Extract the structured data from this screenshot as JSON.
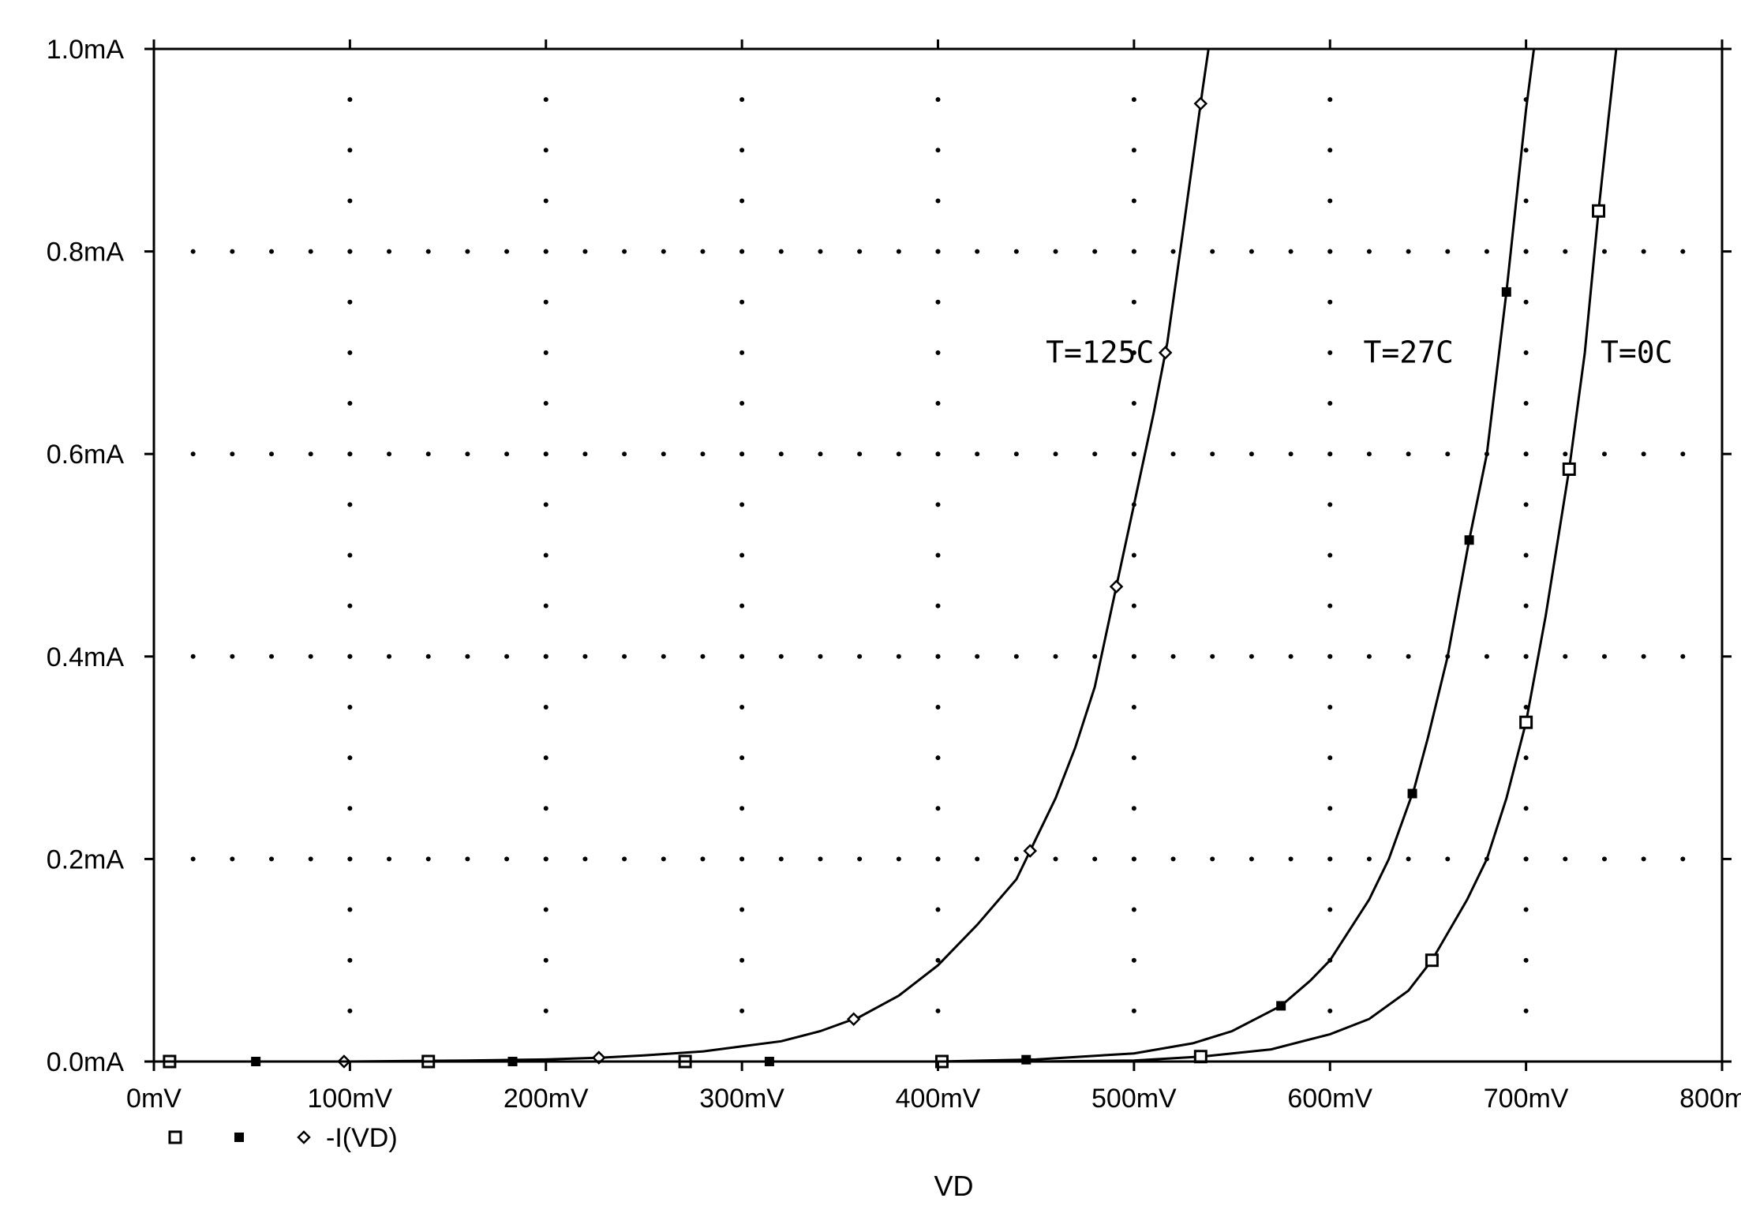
{
  "chart_data": {
    "type": "line",
    "title": "",
    "xlabel": "VD",
    "ylabel": "",
    "xlim": [
      0,
      800
    ],
    "ylim": [
      0,
      1.0
    ],
    "x_unit": "mV",
    "y_unit": "mA",
    "grid": true,
    "legend_position": "bottom-left",
    "x_ticks": [
      0,
      100,
      200,
      300,
      400,
      500,
      600,
      700,
      800
    ],
    "x_tick_labels": [
      "0mV",
      "100mV",
      "200mV",
      "300mV",
      "400mV",
      "500mV",
      "600mV",
      "700mV",
      "800mV"
    ],
    "y_ticks": [
      0,
      0.2,
      0.4,
      0.6,
      0.8,
      1.0
    ],
    "y_tick_labels": [
      "0.0mA",
      "0.2mA",
      "0.4mA",
      "0.6mA",
      "0.8mA",
      "1.0mA"
    ],
    "legend": {
      "entries": [
        {
          "marker": "open-square",
          "label": ""
        },
        {
          "marker": "filled-square",
          "label": ""
        },
        {
          "marker": "open-diamond",
          "label": "-I(VD)"
        }
      ]
    },
    "series": [
      {
        "name": "T=125C",
        "marker": "open-diamond",
        "points": [
          [
            0,
            0
          ],
          [
            100,
            0
          ],
          [
            160,
            0.001
          ],
          [
            200,
            0.002
          ],
          [
            230,
            0.004
          ],
          [
            250,
            0.006
          ],
          [
            280,
            0.01
          ],
          [
            300,
            0.015
          ],
          [
            320,
            0.02
          ],
          [
            340,
            0.03
          ],
          [
            360,
            0.044
          ],
          [
            380,
            0.065
          ],
          [
            400,
            0.095
          ],
          [
            420,
            0.135
          ],
          [
            440,
            0.18
          ],
          [
            450,
            0.22
          ],
          [
            460,
            0.26
          ],
          [
            470,
            0.31
          ],
          [
            480,
            0.37
          ],
          [
            490,
            0.46
          ],
          [
            500,
            0.55
          ],
          [
            510,
            0.64
          ],
          [
            517,
            0.71
          ],
          [
            525,
            0.82
          ],
          [
            530,
            0.89
          ],
          [
            535,
            0.96
          ],
          [
            538,
            1.0
          ]
        ],
        "marker_x": [
          97,
          227,
          357,
          447,
          491,
          516,
          534
        ]
      },
      {
        "name": "T=27C",
        "marker": "filled-square",
        "points": [
          [
            0,
            0
          ],
          [
            400,
            0
          ],
          [
            450,
            0.002
          ],
          [
            500,
            0.008
          ],
          [
            530,
            0.018
          ],
          [
            550,
            0.03
          ],
          [
            575,
            0.055
          ],
          [
            590,
            0.08
          ],
          [
            600,
            0.1
          ],
          [
            620,
            0.16
          ],
          [
            630,
            0.2
          ],
          [
            643,
            0.27
          ],
          [
            650,
            0.32
          ],
          [
            660,
            0.4
          ],
          [
            671,
            0.515
          ],
          [
            680,
            0.6
          ],
          [
            690,
            0.76
          ],
          [
            695,
            0.85
          ],
          [
            700,
            0.94
          ],
          [
            704,
            1.0
          ]
        ],
        "marker_x": [
          52,
          183,
          314,
          445,
          575,
          642,
          671,
          690
        ]
      },
      {
        "name": "T=0C",
        "marker": "open-square",
        "points": [
          [
            0,
            0
          ],
          [
            450,
            0
          ],
          [
            500,
            0.001
          ],
          [
            535,
            0.005
          ],
          [
            570,
            0.012
          ],
          [
            600,
            0.027
          ],
          [
            620,
            0.042
          ],
          [
            640,
            0.07
          ],
          [
            652,
            0.1
          ],
          [
            670,
            0.16
          ],
          [
            680,
            0.2
          ],
          [
            690,
            0.26
          ],
          [
            700,
            0.335
          ],
          [
            710,
            0.44
          ],
          [
            722,
            0.585
          ],
          [
            730,
            0.7
          ],
          [
            737,
            0.84
          ],
          [
            742,
            0.93
          ],
          [
            746,
            1.0
          ]
        ],
        "marker_x": [
          8,
          140,
          271,
          402,
          534,
          652,
          700,
          722,
          737
        ]
      }
    ],
    "annotations": [
      {
        "text": "T=125C",
        "x": 455,
        "y": 0.69
      },
      {
        "text": "T=27C",
        "x": 617,
        "y": 0.69
      },
      {
        "text": "T=0C",
        "x": 738,
        "y": 0.69
      }
    ]
  }
}
